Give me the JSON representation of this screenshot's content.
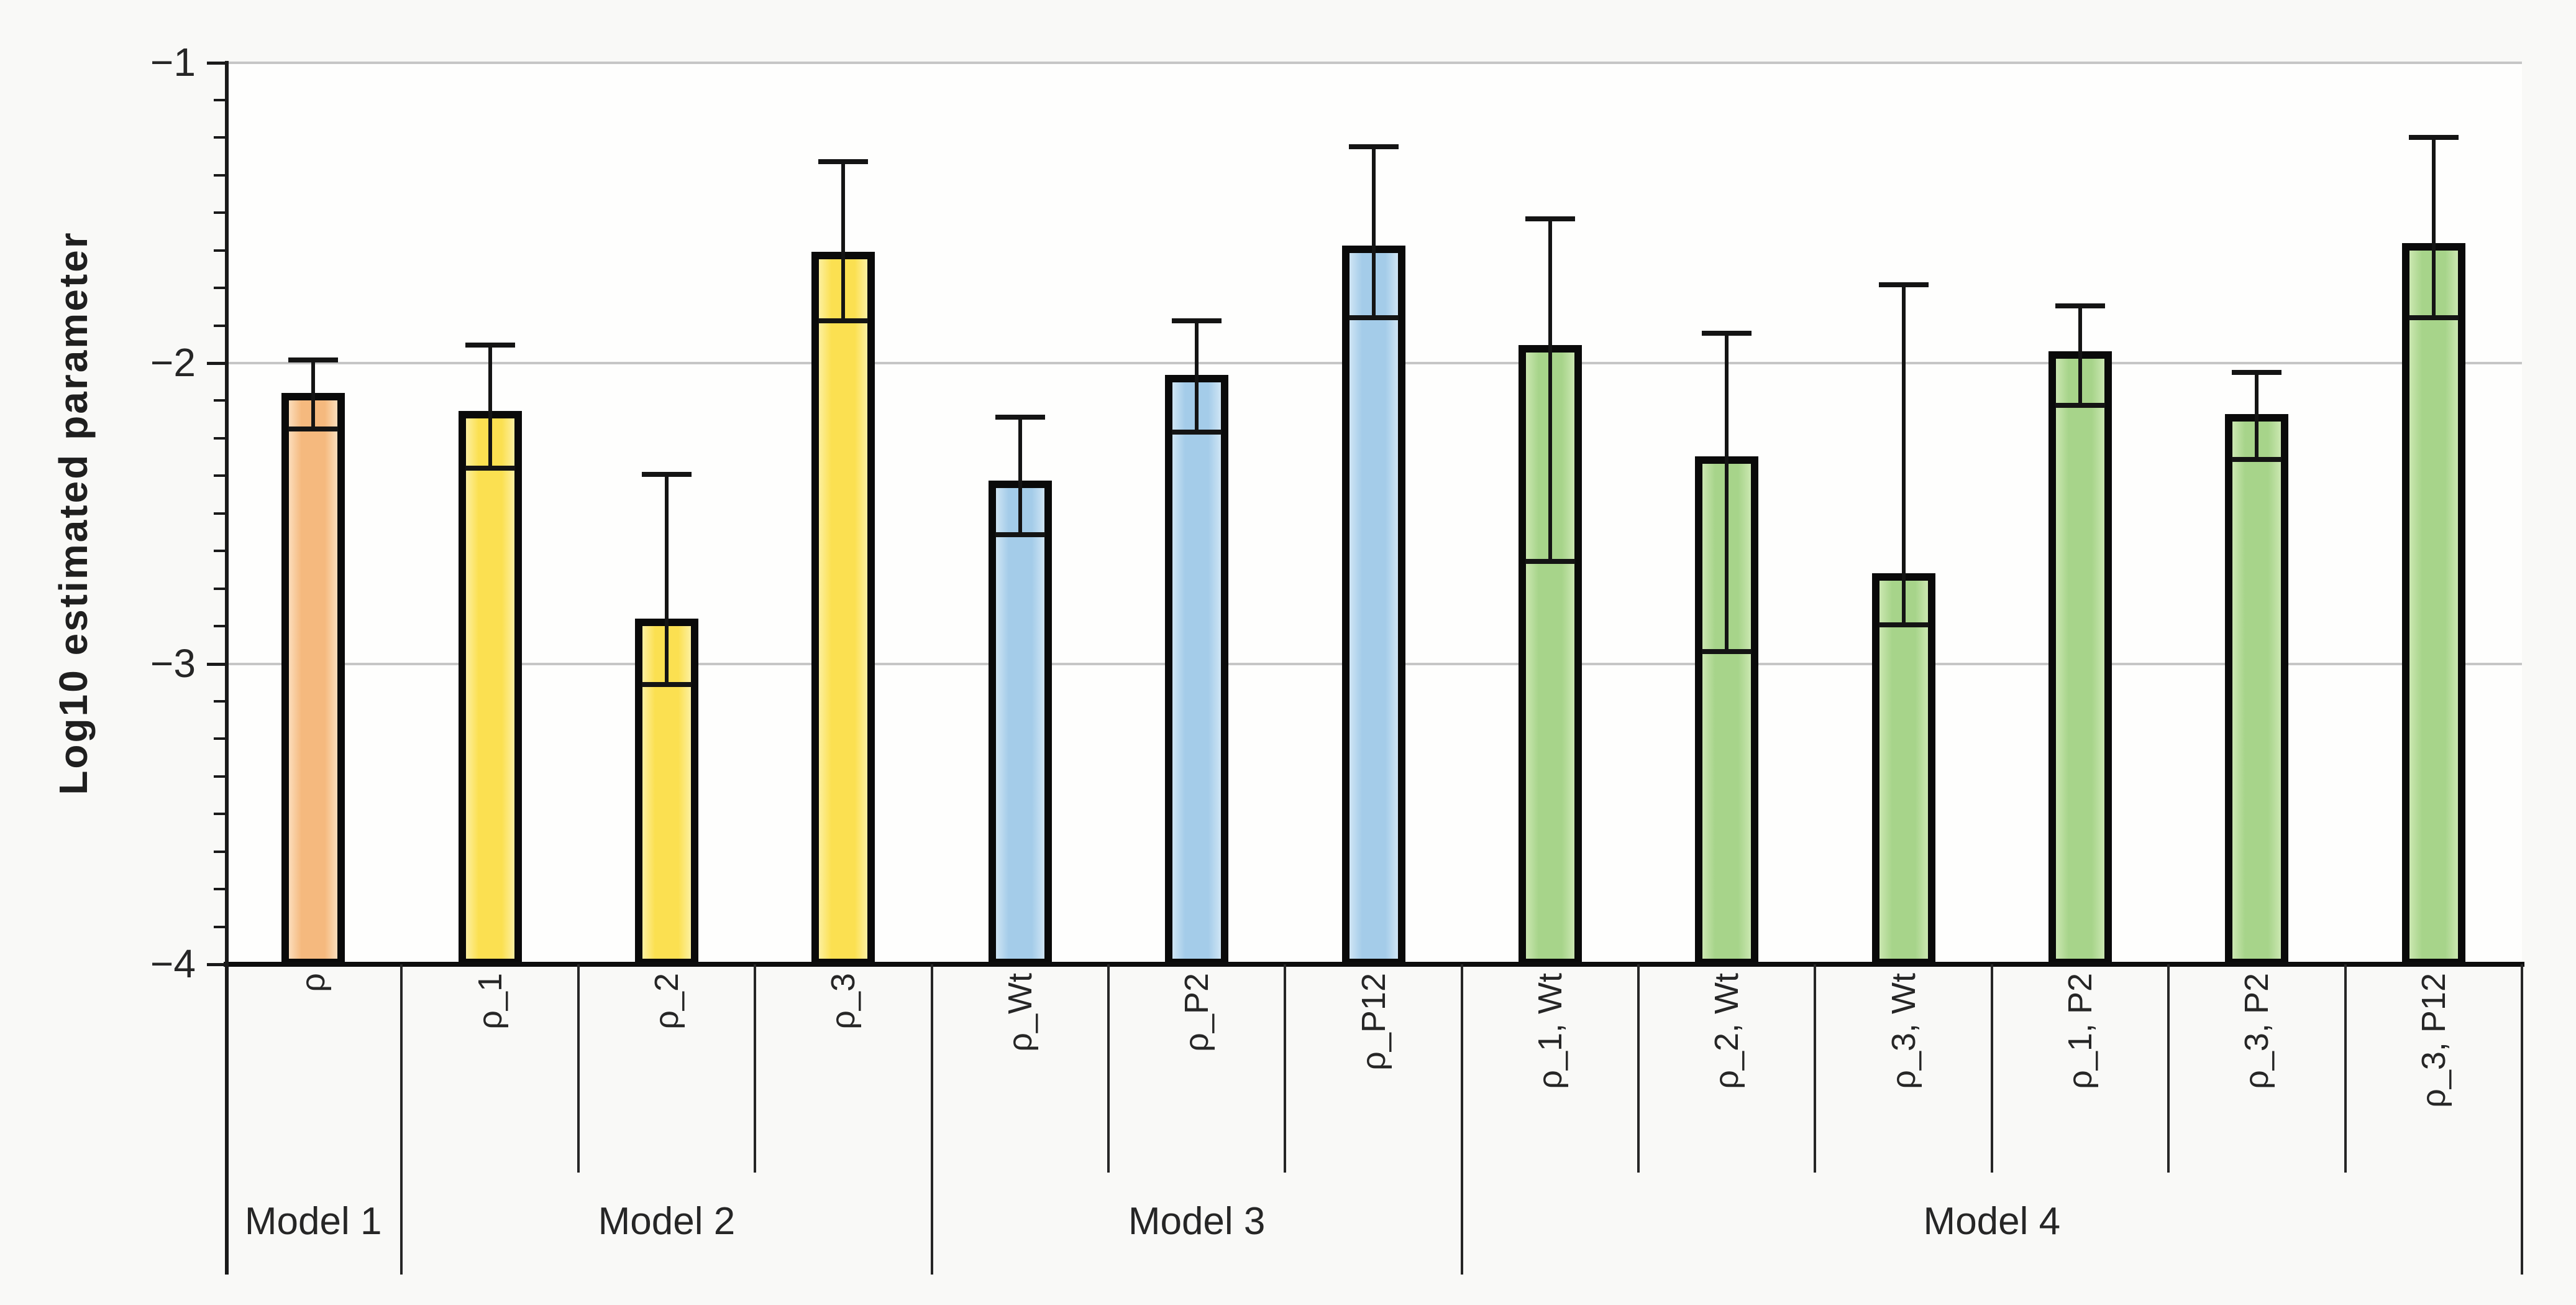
{
  "chart_data": {
    "type": "bar",
    "title": "",
    "xlabel": "",
    "ylabel": "Log10 estimated parameter",
    "ylim": [
      -4,
      -1
    ],
    "y_major_ticks": [
      -1,
      -2,
      -3,
      -4
    ],
    "y_tick_labels": [
      "−1",
      "−2",
      "−3",
      "−4"
    ],
    "y_minor_unit": 0.125,
    "grid": "major-horizontal",
    "legend": "none",
    "error_bars": true,
    "colors": {
      "gridline": "#c6c6c6",
      "axis": "#1a1a1a",
      "bar_border": "#0a0a0a",
      "text": "#262626",
      "figure_background": "#f9f9f7",
      "plot_background": "#fefefd"
    },
    "groups": [
      {
        "label": "Model 1",
        "fill": "#f5b97e",
        "fill_light": "#fbddbb",
        "bars": [
          {
            "label": "ρ",
            "value": -2.1,
            "err_lo": -2.22,
            "err_hi": -1.99
          }
        ]
      },
      {
        "label": "Model 2",
        "fill": "#fbe051",
        "fill_light": "#fdf0a0",
        "bars": [
          {
            "label": "ρ_1",
            "value": -2.16,
            "err_lo": -2.35,
            "err_hi": -1.94
          },
          {
            "label": "ρ_2",
            "value": -2.85,
            "err_lo": -3.07,
            "err_hi": -2.37
          },
          {
            "label": "ρ_3",
            "value": -1.63,
            "err_lo": -1.86,
            "err_hi": -1.33
          }
        ]
      },
      {
        "label": "Model 3",
        "fill": "#a4cce9",
        "fill_light": "#cfe5f4",
        "bars": [
          {
            "label": "ρ_Wt",
            "value": -2.39,
            "err_lo": -2.57,
            "err_hi": -2.18
          },
          {
            "label": "ρ_P2",
            "value": -2.04,
            "err_lo": -2.23,
            "err_hi": -1.86
          },
          {
            "label": "ρ_P12",
            "value": -1.61,
            "err_lo": -1.85,
            "err_hi": -1.28
          }
        ]
      },
      {
        "label": "Model 4",
        "fill": "#a7d48a",
        "fill_light": "#cbe7b1",
        "bars": [
          {
            "label": "ρ_1, Wt",
            "value": -1.94,
            "err_lo": -2.66,
            "err_hi": -1.52
          },
          {
            "label": "ρ_2, Wt",
            "value": -2.31,
            "err_lo": -2.96,
            "err_hi": -1.9
          },
          {
            "label": "ρ_3, Wt",
            "value": -2.7,
            "err_lo": -2.87,
            "err_hi": -1.74
          },
          {
            "label": "ρ_1, P2",
            "value": -1.96,
            "err_lo": -2.14,
            "err_hi": -1.81
          },
          {
            "label": "ρ_3, P2",
            "value": -2.17,
            "err_lo": -2.32,
            "err_hi": -2.03
          },
          {
            "label": "ρ_3, P12",
            "value": -1.6,
            "err_lo": -1.85,
            "err_hi": -1.25
          }
        ]
      }
    ]
  }
}
